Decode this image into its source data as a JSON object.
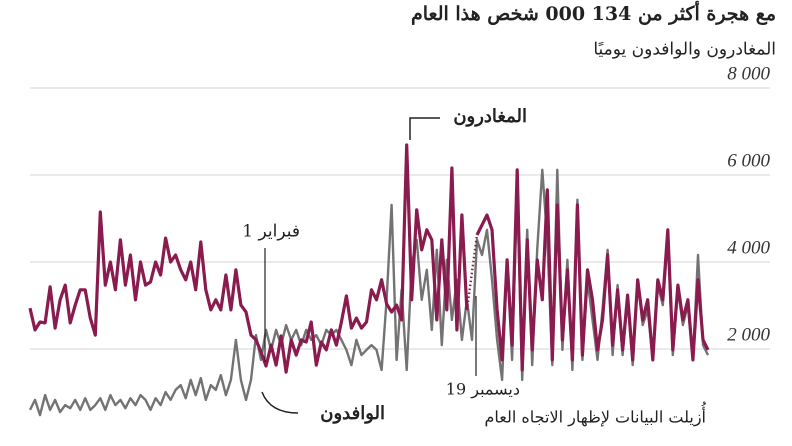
{
  "chart_data": {
    "type": "line",
    "title": "مع هجرة أكثر من 134 000 شخص هذا العام",
    "subtitle": "المغادرون والوافدون يوميًا",
    "ylim": [
      0,
      8000
    ],
    "yticks": [
      {
        "value": 2000,
        "label": "2 000"
      },
      {
        "value": 4000,
        "label": "4 000"
      },
      {
        "value": 6000,
        "label": "6 000"
      },
      {
        "value": 8000,
        "label": "8 000"
      }
    ],
    "grid": true,
    "annotations": [
      "1 فبراير",
      "19 ديسمبر",
      "أُزيلت البيانات لإظهار الاتجاه العام"
    ],
    "series": [
      {
        "name": "الوافدون",
        "color": "#737373",
        "values": [
          600,
          830,
          480,
          940,
          600,
          830,
          550,
          710,
          640,
          830,
          600,
          870,
          600,
          710,
          870,
          600,
          940,
          710,
          830,
          640,
          870,
          710,
          940,
          830,
          600,
          870,
          710,
          1010,
          830,
          1060,
          1170,
          870,
          1290,
          940,
          1330,
          830,
          1170,
          1060,
          1400,
          940,
          1290,
          2210,
          1290,
          830,
          1290,
          2320,
          1750,
          2440,
          1980,
          2440,
          2090,
          2550,
          2210,
          2440,
          2090,
          2440,
          2210,
          2320,
          2090,
          2440,
          2320,
          2440,
          2210,
          1980,
          1630,
          2210,
          1860,
          1980,
          2090,
          1980,
          1520,
          3130,
          5310,
          1750,
          3360,
          1520,
          3930,
          4510,
          3130,
          3820,
          2440,
          4280,
          2090,
          4050,
          2670,
          3590,
          2210,
          3130,
          2210,
          4510,
          4160,
          4740,
          3590,
          2210,
          1290,
          4050,
          1750,
          5660,
          1290,
          4740,
          1630,
          4280,
          6120,
          4510,
          1630,
          6120,
          1980,
          4050,
          1520,
          5430,
          1750,
          3590,
          2670,
          1750,
          2900,
          4280,
          1860,
          3470,
          1860,
          3130,
          1630,
          3590,
          2550,
          2900,
          1750,
          3470,
          3010,
          4510,
          1860,
          3360,
          2550,
          3010,
          1750,
          4160,
          2090,
          1860
        ]
      },
      {
        "name": "المغادرون",
        "color": "#8a1b4f",
        "values": [
          2940,
          2440,
          2620,
          2600,
          3430,
          2480,
          3130,
          3470,
          2600,
          3010,
          3360,
          3360,
          2710,
          2320,
          5150,
          3470,
          4000,
          3360,
          4510,
          3470,
          4160,
          3130,
          4000,
          3470,
          3540,
          4000,
          3700,
          4550,
          4000,
          4160,
          3820,
          3590,
          4000,
          3360,
          4460,
          3360,
          2900,
          3130,
          2900,
          3700,
          2900,
          3820,
          3010,
          2850,
          2320,
          2210,
          1930,
          1610,
          2090,
          1630,
          2300,
          1470,
          2210,
          1860,
          2210,
          2160,
          2620,
          1630,
          2160,
          1980,
          2440,
          2090,
          2620,
          3220,
          2480,
          2710,
          2480,
          2620,
          3360,
          3130,
          3590,
          3040,
          2850,
          3010,
          2670,
          6690,
          3130,
          5200,
          4280,
          4740,
          4510,
          2670,
          4510,
          2900,
          6160,
          2440,
          5080,
          2900,
          null,
          4620,
          4850,
          5080,
          4740,
          2900,
          1750,
          4050,
          2090,
          6120,
          1520,
          4510,
          1980,
          4050,
          3130,
          5660,
          1750,
          5310,
          2210,
          3820,
          1750,
          5310,
          1860,
          3820,
          3130,
          1980,
          2670,
          4160,
          2090,
          3360,
          1980,
          3240,
          1750,
          3590,
          2670,
          3130,
          1750,
          3590,
          3130,
          4740,
          1980,
          3470,
          2670,
          3130,
          1750,
          3590,
          2210,
          1980
        ]
      }
    ]
  }
}
